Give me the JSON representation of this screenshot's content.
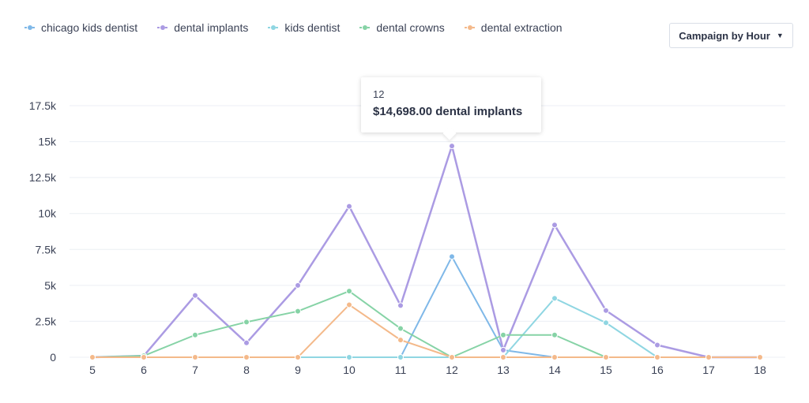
{
  "legend": [
    {
      "label": "chicago kids dentist",
      "color": "#7fb8e8"
    },
    {
      "label": "dental implants",
      "color": "#ab9be3"
    },
    {
      "label": "kids dentist",
      "color": "#8fd6e2"
    },
    {
      "label": "dental crowns",
      "color": "#86d3a6"
    },
    {
      "label": "dental extraction",
      "color": "#f4b98a"
    }
  ],
  "campaign_button": {
    "label": "Campaign by Hour"
  },
  "tooltip": {
    "x": "12",
    "value": "$14,698.00 dental implants"
  },
  "chart_data": {
    "type": "line",
    "x": [
      5,
      6,
      7,
      8,
      9,
      10,
      11,
      12,
      13,
      14,
      15,
      16,
      17,
      18
    ],
    "ylim": [
      0,
      17500
    ],
    "yticks": [
      0,
      2500,
      5000,
      7500,
      10000,
      12500,
      15000,
      17500
    ],
    "ytick_labels": [
      "0",
      "2.5k",
      "5k",
      "7.5k",
      "10k",
      "12.5k",
      "15k",
      "17.5k"
    ],
    "series": [
      {
        "name": "chicago kids dentist",
        "color": "#7fb8e8",
        "values": [
          0,
          0,
          0,
          0,
          0,
          0,
          0,
          7000,
          500,
          0,
          0,
          0,
          0,
          0
        ]
      },
      {
        "name": "dental implants",
        "color": "#ab9be3",
        "values": [
          0,
          100,
          4300,
          1000,
          5000,
          10500,
          3600,
          14698,
          500,
          9200,
          3250,
          850,
          0,
          0
        ]
      },
      {
        "name": "kids dentist",
        "color": "#8fd6e2",
        "values": [
          0,
          0,
          0,
          0,
          0,
          0,
          0,
          0,
          0,
          4100,
          2400,
          0,
          0,
          0
        ]
      },
      {
        "name": "dental crowns",
        "color": "#86d3a6",
        "values": [
          0,
          100,
          1550,
          2450,
          3200,
          4600,
          2000,
          0,
          1550,
          1550,
          0,
          0,
          0,
          0
        ]
      },
      {
        "name": "dental extraction",
        "color": "#f4b98a",
        "values": [
          0,
          0,
          0,
          0,
          0,
          3650,
          1200,
          0,
          0,
          0,
          0,
          0,
          0,
          0
        ]
      }
    ],
    "highlight": {
      "series": "dental implants",
      "x": 12,
      "value": 14698
    }
  }
}
